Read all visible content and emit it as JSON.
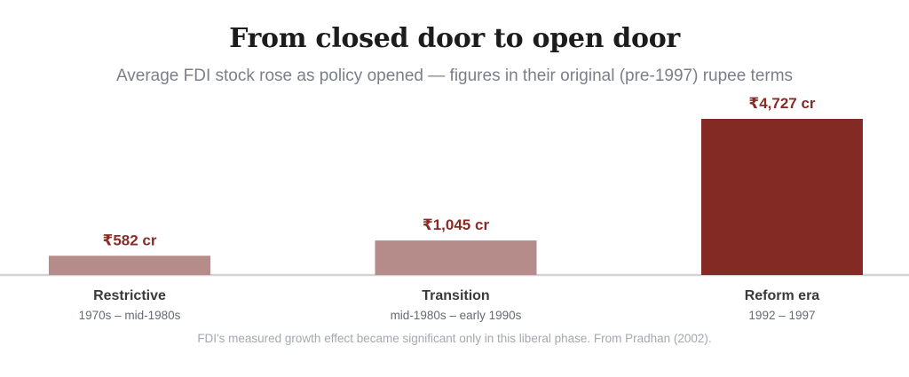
{
  "title": "From closed door to open door",
  "subtitle": "Average FDI stock rose as policy opened — figures in their original (pre-1997) rupee terms",
  "footnote": "FDI's measured growth effect became significant only in this liberal phase. From Pradhan (2002).",
  "colors": {
    "muted_bar": "#b58c89",
    "highlight_bar": "#842a24",
    "value_label": "#8a2b25",
    "category_label": "#3a3a3a",
    "period_label": "#666a72",
    "baseline": "#d3d3d6"
  },
  "chart_data": {
    "type": "bar",
    "categories": [
      "Restrictive",
      "Transition",
      "Reform era"
    ],
    "periods": [
      "1970s – mid-1980s",
      "mid-1980s – early 1990s",
      "1992 – 1997"
    ],
    "values": [
      582,
      1045,
      4727
    ],
    "value_labels": [
      "₹582 cr",
      "₹1,045 cr",
      "₹4,727 cr"
    ],
    "highlight_index": 2,
    "ylim": [
      0,
      4727
    ]
  }
}
